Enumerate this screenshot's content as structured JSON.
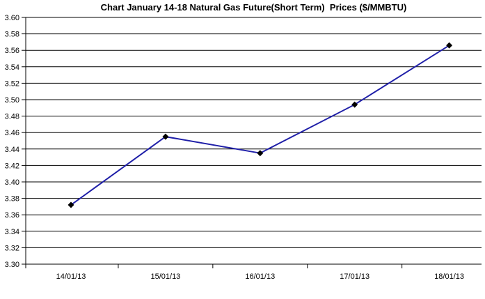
{
  "chart_data": {
    "type": "line",
    "title": "Chart January 14-18 Natural Gas Future(Short Term)  Prices ($/MMBTU)",
    "categories": [
      "14/01/13",
      "15/01/13",
      "16/01/13",
      "17/01/13",
      "18/01/13"
    ],
    "values": [
      3.372,
      3.455,
      3.435,
      3.494,
      3.566
    ],
    "xlabel": "",
    "ylabel": "",
    "ylim": [
      3.3,
      3.6
    ],
    "ytick_step": 0.02,
    "yticks": [
      "3.30",
      "3.32",
      "3.34",
      "3.36",
      "3.38",
      "3.40",
      "3.42",
      "3.44",
      "3.46",
      "3.48",
      "3.50",
      "3.52",
      "3.54",
      "3.56",
      "3.58",
      "3.60"
    ],
    "grid": "horizontal",
    "legend": "none",
    "colors": {
      "line": "#1F1FA8",
      "marker": "#000000",
      "grid": "#000000",
      "axis": "#000000",
      "text": "#000000",
      "background": "#FFFFFF"
    },
    "marker_shape": "diamond"
  }
}
